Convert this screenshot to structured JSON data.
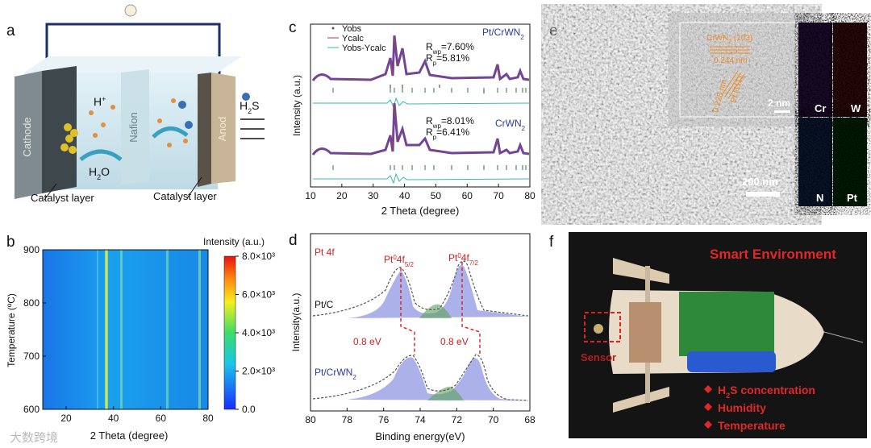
{
  "panels": {
    "a": {
      "label": "a",
      "cathode": "Cathode",
      "nafion": "Nafion",
      "anode": "Anod",
      "proton": {
        "main": "H",
        "sup": "+"
      },
      "h2s": {
        "main": "H",
        "sub": "2",
        "rest": "S"
      },
      "water": {
        "main": "H",
        "sub": "2",
        "rest": "O"
      },
      "catalyst_left": "Catalyst layer",
      "catalyst_right": "Catalyst layer"
    },
    "b": {
      "label": "b",
      "y_label": "Temperature (ºC)",
      "x_label": "2 Theta (degree)",
      "yticks": [
        600,
        700,
        800,
        900
      ],
      "xticks": [
        20,
        40,
        60,
        80
      ],
      "colorbar_title": "Intensity (a.u.)",
      "colorbar_ticks": [
        "8.0×10³",
        "6.0×10³",
        "4.0×10³",
        "2.0×10³",
        "0.0"
      ]
    },
    "c": {
      "label": "c",
      "y_label": "Intensity (a.u.)",
      "x_label": "2 Theta (degree)",
      "xticks": [
        10,
        20,
        30,
        40,
        50,
        60,
        70,
        80
      ],
      "legend": [
        "Yobs",
        "Ycalc",
        "Yobs-Ycalc"
      ],
      "top": {
        "sample": {
          "main": "Pt/CrWN",
          "sub": "2"
        },
        "rwp": {
          "main": "R",
          "sub": "wp",
          "rest": "=7.60%"
        },
        "rp": {
          "main": "R",
          "sub": "p",
          "rest": "=5.81%"
        }
      },
      "bottom": {
        "sample": {
          "main": "CrWN",
          "sub": "2"
        },
        "rwp": {
          "main": "R",
          "sub": "wp",
          "rest": "=8.01%"
        },
        "rp": {
          "main": "R",
          "sub": "p",
          "rest": "=6.41%"
        }
      }
    },
    "d": {
      "label": "d",
      "y_label": "Intensity(a.u.)",
      "x_label": "Binding energy(eV)",
      "xticks": [
        80,
        78,
        76,
        74,
        72,
        70,
        68
      ],
      "region": "Pt 4f",
      "peak_left": {
        "main": "Pt",
        "sup": "0",
        "mid": "4f",
        "sub": "5/2"
      },
      "peak_right": {
        "main": "Pt",
        "sup": "0",
        "mid": "4f",
        "sub": "7/2"
      },
      "ref": "Pt/C",
      "sample": {
        "main": "Pt/CrWN",
        "sub": "2"
      },
      "shift_left": "0.8 eV",
      "shift_right": "0.8 eV"
    },
    "e": {
      "label": "e",
      "plane_top": {
        "main": "CrWN",
        "sub": "2",
        "rest": " (103)"
      },
      "d_top": "0.244 nm",
      "plane_pt": "Pt (111)",
      "d_pt": "0.228 nm",
      "inset_scale": "2 nm",
      "scale": "200 nm",
      "maps": [
        "Cr",
        "W",
        "N",
        "Pt"
      ]
    },
    "f": {
      "label": "f",
      "title": "Smart Environment",
      "sensor": "Sensor",
      "features": [
        {
          "main": "H",
          "sub": "2",
          "rest": "S concentration"
        },
        "Humidity",
        "Temperature"
      ]
    }
  },
  "watermark": "大数跨境"
}
